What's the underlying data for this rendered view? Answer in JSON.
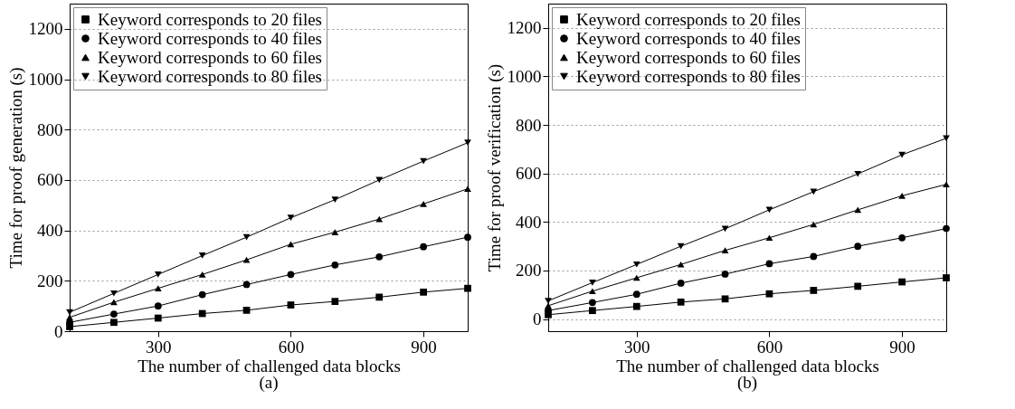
{
  "chart_data": [
    {
      "type": "line",
      "xlabel": "The number of challenged data blocks",
      "ylabel": "Time for proof generation (s)",
      "annotations": [
        "(a)"
      ],
      "x": [
        100,
        200,
        300,
        400,
        500,
        600,
        700,
        800,
        900,
        1000
      ],
      "xlim": [
        100,
        1000
      ],
      "xticks": [
        300,
        600,
        900
      ],
      "ylim": [
        0,
        1300
      ],
      "yticks": [
        0,
        200,
        400,
        600,
        800,
        1000,
        1200
      ],
      "grid": "y",
      "legend": "top left",
      "line_style": "solid",
      "series": [
        {
          "name": "Keyword corresponds to 20 files",
          "color": "#000000",
          "marker": "square",
          "values": [
            18,
            35,
            52,
            70,
            83,
            104,
            118,
            135,
            155,
            170
          ]
        },
        {
          "name": "Keyword corresponds to 40 files",
          "color": "#000000",
          "marker": "circle",
          "values": [
            35,
            68,
            100,
            145,
            185,
            225,
            263,
            295,
            335,
            373
          ]
        },
        {
          "name": "Keyword corresponds to 60 files",
          "color": "#000000",
          "marker": "triangle",
          "values": [
            55,
            115,
            170,
            225,
            283,
            345,
            393,
            445,
            505,
            565
          ]
        },
        {
          "name": "Keyword corresponds to 80 files",
          "color": "#000000",
          "marker": "triangle-down",
          "values": [
            75,
            150,
            225,
            300,
            373,
            450,
            522,
            600,
            675,
            748
          ]
        }
      ]
    },
    {
      "type": "line",
      "xlabel": "The number of challenged data blocks",
      "ylabel": "Time for proof verification (s)",
      "annotations": [
        "(b)"
      ],
      "x": [
        100,
        200,
        300,
        400,
        500,
        600,
        700,
        800,
        900,
        1000
      ],
      "xlim": [
        100,
        1000
      ],
      "xticks": [
        300,
        600,
        900
      ],
      "ylim": [
        -50,
        1300
      ],
      "yticks": [
        0,
        200,
        400,
        600,
        800,
        1000,
        1200
      ],
      "grid": "y",
      "legend": "top left",
      "line_style": "solid",
      "series": [
        {
          "name": "Keyword corresponds to 20 files",
          "color": "#000000",
          "marker": "square",
          "values": [
            18,
            35,
            52,
            70,
            83,
            104,
            118,
            135,
            153,
            170
          ]
        },
        {
          "name": "Keyword corresponds to 40 files",
          "color": "#000000",
          "marker": "circle",
          "values": [
            35,
            68,
            102,
            148,
            185,
            228,
            258,
            300,
            335,
            373
          ]
        },
        {
          "name": "Keyword corresponds to 60 files",
          "color": "#000000",
          "marker": "triangle",
          "values": [
            55,
            115,
            170,
            225,
            283,
            335,
            390,
            450,
            508,
            555
          ]
        },
        {
          "name": "Keyword corresponds to 80 files",
          "color": "#000000",
          "marker": "triangle-down",
          "values": [
            75,
            150,
            225,
            300,
            372,
            450,
            525,
            598,
            677,
            745
          ]
        }
      ]
    }
  ]
}
